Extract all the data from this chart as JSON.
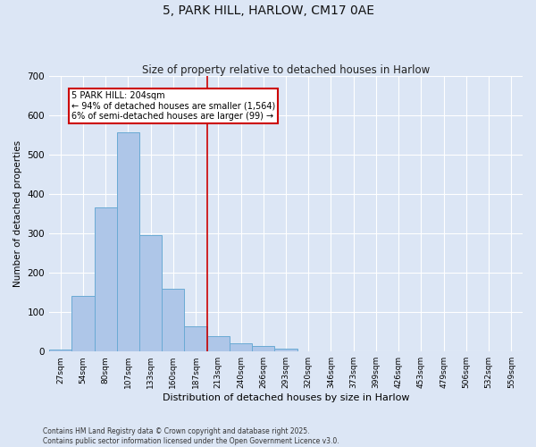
{
  "title": "5, PARK HILL, HARLOW, CM17 0AE",
  "subtitle": "Size of property relative to detached houses in Harlow",
  "xlabel": "Distribution of detached houses by size in Harlow",
  "ylabel": "Number of detached properties",
  "bin_labels": [
    "27sqm",
    "54sqm",
    "80sqm",
    "107sqm",
    "133sqm",
    "160sqm",
    "187sqm",
    "213sqm",
    "240sqm",
    "266sqm",
    "293sqm",
    "320sqm",
    "346sqm",
    "373sqm",
    "399sqm",
    "426sqm",
    "453sqm",
    "479sqm",
    "506sqm",
    "532sqm",
    "559sqm"
  ],
  "bar_values": [
    5,
    140,
    365,
    555,
    295,
    160,
    65,
    40,
    22,
    15,
    8,
    0,
    0,
    0,
    0,
    0,
    0,
    0,
    0,
    0,
    0
  ],
  "bar_color": "#aec6e8",
  "bar_edge_color": "#6aaad4",
  "background_color": "#dce6f5",
  "grid_color": "#ffffff",
  "fig_background": "#dce6f5",
  "ylim": [
    0,
    700
  ],
  "yticks": [
    0,
    100,
    200,
    300,
    400,
    500,
    600,
    700
  ],
  "marker_bin_edge": 6.5,
  "marker_label": "5 PARK HILL: 204sqm",
  "marker_text_line2": "← 94% of detached houses are smaller (1,564)",
  "marker_text_line3": "6% of semi-detached houses are larger (99) →",
  "marker_color": "#cc0000",
  "annotation_box_edge": "#cc0000",
  "footer_line1": "Contains HM Land Registry data © Crown copyright and database right 2025.",
  "footer_line2": "Contains public sector information licensed under the Open Government Licence v3.0."
}
